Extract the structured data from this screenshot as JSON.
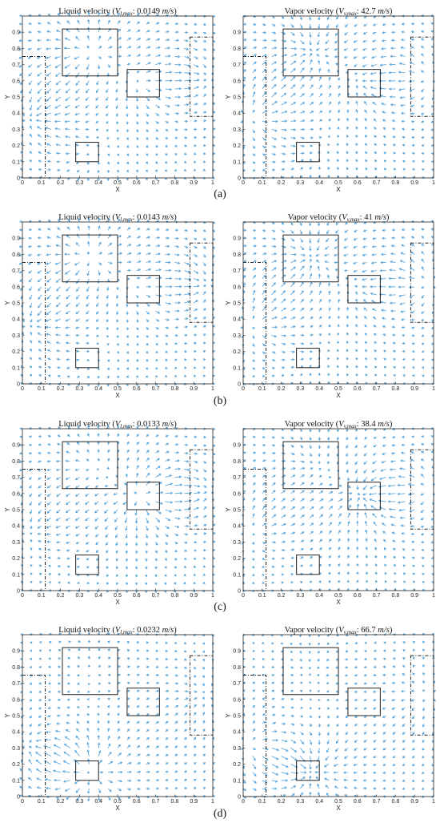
{
  "chart_data": [
    {
      "type": "quiver",
      "panel": "a",
      "title": "Liquid velocity (V_l,max: 0.0149 m/s)",
      "title_prefix": "Liquid velocity (",
      "sym": "V",
      "sub": "l,max",
      "value_text": ": 0.0149 ",
      "unit": "m/s",
      "suffix": ")",
      "xlabel": "X",
      "ylabel": "Y",
      "xlim": [
        0,
        1
      ],
      "ylim": [
        0,
        1
      ],
      "xticks": [
        "0",
        "0.1",
        "0.2",
        "0.3",
        "0.4",
        "0.5",
        "0.6",
        "0.7",
        "0.8",
        "0.9",
        "1"
      ],
      "yticks": [
        "0",
        "0.1",
        "0.2",
        "0.3",
        "0.4",
        "0.5",
        "0.6",
        "0.7",
        "0.8",
        "0.9"
      ],
      "solid_regions": [
        [
          0.21,
          0.63,
          0.5,
          0.92
        ],
        [
          0.55,
          0.5,
          0.72,
          0.67
        ],
        [
          0.28,
          0.1,
          0.4,
          0.22
        ]
      ],
      "dashed_regions": [
        [
          0,
          0,
          0.12,
          0.75
        ],
        [
          0.88,
          0.38,
          1,
          0.87
        ]
      ],
      "flow": {
        "sources": [
          [
            0.35,
            0.78,
            1.0
          ],
          [
            0.64,
            0.58,
            0.7
          ],
          [
            0.34,
            0.16,
            0.4
          ]
        ],
        "sinks": [
          [
            0.06,
            0.38,
            0.9
          ],
          [
            0.94,
            0.62,
            0.7
          ]
        ],
        "uniform": [
          0.0,
          0.0
        ]
      }
    },
    {
      "type": "quiver",
      "panel": "a",
      "title": "Vapor velocity (V_v,max: 42.7 m/s)",
      "title_prefix": "Vapor velocity (",
      "sym": "V",
      "sub": "v,max",
      "value_text": ": 42.7 ",
      "unit": "m/s",
      "suffix": ")",
      "xlabel": "X",
      "ylabel": "Y",
      "xlim": [
        0,
        1
      ],
      "ylim": [
        0,
        1
      ],
      "xticks": [
        "0",
        "0.1",
        "0.2",
        "0.3",
        "0.4",
        "0.5",
        "0.6",
        "0.7",
        "0.8",
        "0.9",
        "1"
      ],
      "yticks": [
        "0",
        "0.1",
        "0.2",
        "0.3",
        "0.4",
        "0.5",
        "0.6",
        "0.7",
        "0.8",
        "0.9"
      ],
      "solid_regions": [
        [
          0.21,
          0.63,
          0.5,
          0.92
        ],
        [
          0.55,
          0.5,
          0.72,
          0.67
        ],
        [
          0.28,
          0.1,
          0.4,
          0.22
        ]
      ],
      "dashed_regions": [
        [
          0,
          0,
          0.12,
          0.75
        ],
        [
          0.88,
          0.38,
          1,
          0.87
        ]
      ],
      "flow": {
        "sources": [
          [
            0.06,
            0.38,
            0.9
          ],
          [
            0.94,
            0.62,
            0.7
          ]
        ],
        "sinks": [
          [
            0.35,
            0.78,
            1.0
          ],
          [
            0.64,
            0.58,
            0.7
          ],
          [
            0.34,
            0.16,
            0.4
          ]
        ],
        "uniform": [
          0.0,
          0.0
        ]
      }
    },
    {
      "type": "quiver",
      "panel": "b",
      "title": "Liquid velocity (V_l,max: 0.0143 m/s)",
      "title_prefix": "Liquid velocity (",
      "sym": "V",
      "sub": "l,max",
      "value_text": ": 0.0143 ",
      "unit": "m/s",
      "suffix": ")",
      "xlabel": "X",
      "ylabel": "Y",
      "xlim": [
        0,
        1
      ],
      "ylim": [
        0,
        1
      ],
      "xticks": [
        "0",
        "0.1",
        "0.2",
        "0.3",
        "0.4",
        "0.5",
        "0.6",
        "0.7",
        "0.8",
        "0.9",
        "1"
      ],
      "yticks": [
        "0",
        "0.1",
        "0.2",
        "0.3",
        "0.4",
        "0.5",
        "0.6",
        "0.7",
        "0.8",
        "0.9"
      ],
      "solid_regions": [
        [
          0.21,
          0.63,
          0.5,
          0.92
        ],
        [
          0.55,
          0.5,
          0.72,
          0.67
        ],
        [
          0.28,
          0.1,
          0.4,
          0.22
        ]
      ],
      "dashed_regions": [
        [
          0,
          0,
          0.12,
          0.75
        ],
        [
          0.88,
          0.38,
          1,
          0.87
        ]
      ],
      "flow": {
        "sources": [
          [
            0.35,
            0.78,
            1.0
          ],
          [
            0.64,
            0.58,
            0.6
          ],
          [
            0.34,
            0.16,
            0.3
          ]
        ],
        "sinks": [
          [
            0.06,
            0.38,
            0.8
          ],
          [
            0.94,
            0.62,
            0.8
          ]
        ],
        "uniform": [
          0.0,
          0.0
        ]
      }
    },
    {
      "type": "quiver",
      "panel": "b",
      "title": "Vapor velocity (V_v,max: 41 m/s)",
      "title_prefix": "Vapor velocity (",
      "sym": "V",
      "sub": "v,max",
      "value_text": ": 41 ",
      "unit": "m/s",
      "suffix": ")",
      "xlabel": "X",
      "ylabel": "Y",
      "xlim": [
        0,
        1
      ],
      "ylim": [
        0,
        1
      ],
      "xticks": [
        "0",
        "0.1",
        "0.2",
        "0.3",
        "0.4",
        "0.5",
        "0.6",
        "0.7",
        "0.8",
        "0.9",
        "1"
      ],
      "yticks": [
        "0",
        "0.1",
        "0.2",
        "0.3",
        "0.4",
        "0.5",
        "0.6",
        "0.7",
        "0.8",
        "0.9"
      ],
      "solid_regions": [
        [
          0.21,
          0.63,
          0.5,
          0.92
        ],
        [
          0.55,
          0.5,
          0.72,
          0.67
        ],
        [
          0.28,
          0.1,
          0.4,
          0.22
        ]
      ],
      "dashed_regions": [
        [
          0,
          0,
          0.12,
          0.75
        ],
        [
          0.88,
          0.38,
          1,
          0.87
        ]
      ],
      "flow": {
        "sources": [
          [
            0.06,
            0.38,
            0.8
          ],
          [
            0.94,
            0.62,
            0.8
          ]
        ],
        "sinks": [
          [
            0.35,
            0.78,
            1.0
          ],
          [
            0.64,
            0.58,
            0.6
          ],
          [
            0.34,
            0.16,
            0.3
          ]
        ],
        "uniform": [
          0.0,
          0.0
        ]
      }
    },
    {
      "type": "quiver",
      "panel": "c",
      "title": "Liquid velocity (V_l,max: 0.0133 m/s)",
      "title_prefix": "Liquid velocity (",
      "sym": "V",
      "sub": "l,max",
      "value_text": ": 0.0133 ",
      "unit": "m/s",
      "suffix": ")",
      "xlabel": "X",
      "ylabel": "Y",
      "xlim": [
        0,
        1
      ],
      "ylim": [
        0,
        1
      ],
      "xticks": [
        "0",
        "0.1",
        "0.2",
        "0.3",
        "0.4",
        "0.5",
        "0.6",
        "0.7",
        "0.8",
        "0.9",
        "1"
      ],
      "yticks": [
        "0",
        "0.1",
        "0.2",
        "0.3",
        "0.4",
        "0.5",
        "0.6",
        "0.7",
        "0.8",
        "0.9"
      ],
      "solid_regions": [
        [
          0.21,
          0.63,
          0.5,
          0.92
        ],
        [
          0.55,
          0.5,
          0.72,
          0.67
        ],
        [
          0.28,
          0.1,
          0.4,
          0.22
        ]
      ],
      "dashed_regions": [
        [
          0,
          0,
          0.12,
          0.75
        ],
        [
          0.88,
          0.38,
          1,
          0.87
        ]
      ],
      "flow": {
        "sources": [
          [
            0.64,
            0.58,
            1.2
          ],
          [
            0.35,
            0.78,
            0.5
          ]
        ],
        "sinks": [
          [
            0.94,
            0.62,
            0.8
          ],
          [
            0.06,
            0.38,
            0.6
          ]
        ],
        "uniform": [
          0.0,
          0.0
        ]
      }
    },
    {
      "type": "quiver",
      "panel": "c",
      "title": "Vapor velocity (V_v,max: 38.4 m/s)",
      "title_prefix": "Vapor velocity (",
      "sym": "V",
      "sub": "v,max",
      "value_text": ": 38.4 ",
      "unit": "m/s",
      "suffix": ")",
      "xlabel": "X",
      "ylabel": "Y",
      "xlim": [
        0,
        1
      ],
      "ylim": [
        0,
        1
      ],
      "xticks": [
        "0",
        "0.1",
        "0.2",
        "0.3",
        "0.4",
        "0.5",
        "0.6",
        "0.7",
        "0.8",
        "0.9",
        "1"
      ],
      "yticks": [
        "0",
        "0.1",
        "0.2",
        "0.3",
        "0.4",
        "0.5",
        "0.6",
        "0.7",
        "0.8",
        "0.9"
      ],
      "solid_regions": [
        [
          0.21,
          0.63,
          0.5,
          0.92
        ],
        [
          0.55,
          0.5,
          0.72,
          0.67
        ],
        [
          0.28,
          0.1,
          0.4,
          0.22
        ]
      ],
      "dashed_regions": [
        [
          0,
          0,
          0.12,
          0.75
        ],
        [
          0.88,
          0.38,
          1,
          0.87
        ]
      ],
      "flow": {
        "sources": [
          [
            0.94,
            0.62,
            0.8
          ],
          [
            0.06,
            0.38,
            0.6
          ]
        ],
        "sinks": [
          [
            0.64,
            0.58,
            1.2
          ],
          [
            0.35,
            0.78,
            0.5
          ]
        ],
        "uniform": [
          0.0,
          0.0
        ]
      }
    },
    {
      "type": "quiver",
      "panel": "d",
      "title": "Liquid velocity (V_l,max: 0.0232 m/s)",
      "title_prefix": "Liquid velocity (",
      "sym": "V",
      "sub": "l,max",
      "value_text": ": 0.0232 ",
      "unit": "m/s",
      "suffix": ")",
      "xlabel": "X",
      "ylabel": "Y",
      "xlim": [
        0,
        1
      ],
      "ylim": [
        0,
        1
      ],
      "xticks": [
        "0",
        "0.1",
        "0.2",
        "0.3",
        "0.4",
        "0.5",
        "0.6",
        "0.7",
        "0.8",
        "0.9",
        "1"
      ],
      "yticks": [
        "0",
        "0.1",
        "0.2",
        "0.3",
        "0.4",
        "0.5",
        "0.6",
        "0.7",
        "0.8",
        "0.9"
      ],
      "solid_regions": [
        [
          0.21,
          0.63,
          0.5,
          0.92
        ],
        [
          0.55,
          0.5,
          0.72,
          0.67
        ],
        [
          0.28,
          0.1,
          0.4,
          0.22
        ]
      ],
      "dashed_regions": [
        [
          0,
          0,
          0.12,
          0.75
        ],
        [
          0.88,
          0.38,
          1,
          0.87
        ]
      ],
      "flow": {
        "sources": [
          [
            0.34,
            0.16,
            1.3
          ],
          [
            0.35,
            0.78,
            0.3
          ]
        ],
        "sinks": [
          [
            0.06,
            0.3,
            0.9
          ],
          [
            0.94,
            0.62,
            0.5
          ]
        ],
        "uniform": [
          0.0,
          0.0
        ]
      }
    },
    {
      "type": "quiver",
      "panel": "d",
      "title": "Vapor velocity (V_v,max: 66.7 m/s)",
      "title_prefix": "Vapor velocity (",
      "sym": "V",
      "sub": "v,max",
      "value_text": ": 66.7 ",
      "unit": "m/s",
      "suffix": ")",
      "xlabel": "X",
      "ylabel": "Y",
      "xlim": [
        0,
        1
      ],
      "ylim": [
        0,
        1
      ],
      "xticks": [
        "0",
        "0.1",
        "0.2",
        "0.3",
        "0.4",
        "0.5",
        "0.6",
        "0.7",
        "0.8",
        "0.9",
        "1"
      ],
      "yticks": [
        "0",
        "0.1",
        "0.2",
        "0.3",
        "0.4",
        "0.5",
        "0.6",
        "0.7",
        "0.8",
        "0.9"
      ],
      "solid_regions": [
        [
          0.21,
          0.63,
          0.5,
          0.92
        ],
        [
          0.55,
          0.5,
          0.72,
          0.67
        ],
        [
          0.28,
          0.1,
          0.4,
          0.22
        ]
      ],
      "dashed_regions": [
        [
          0,
          0,
          0.12,
          0.75
        ],
        [
          0.88,
          0.38,
          1,
          0.87
        ]
      ],
      "flow": {
        "sources": [
          [
            0.06,
            0.3,
            0.9
          ],
          [
            0.94,
            0.62,
            0.5
          ]
        ],
        "sinks": [
          [
            0.34,
            0.16,
            1.3
          ],
          [
            0.35,
            0.78,
            0.3
          ]
        ],
        "uniform": [
          0.0,
          0.0
        ]
      }
    }
  ],
  "panel_labels": [
    "(a)",
    "(b)",
    "(c)",
    "(d)"
  ],
  "colors": {
    "arrow": "#5ba6dc",
    "frame": "#222222",
    "text": "#111111"
  }
}
